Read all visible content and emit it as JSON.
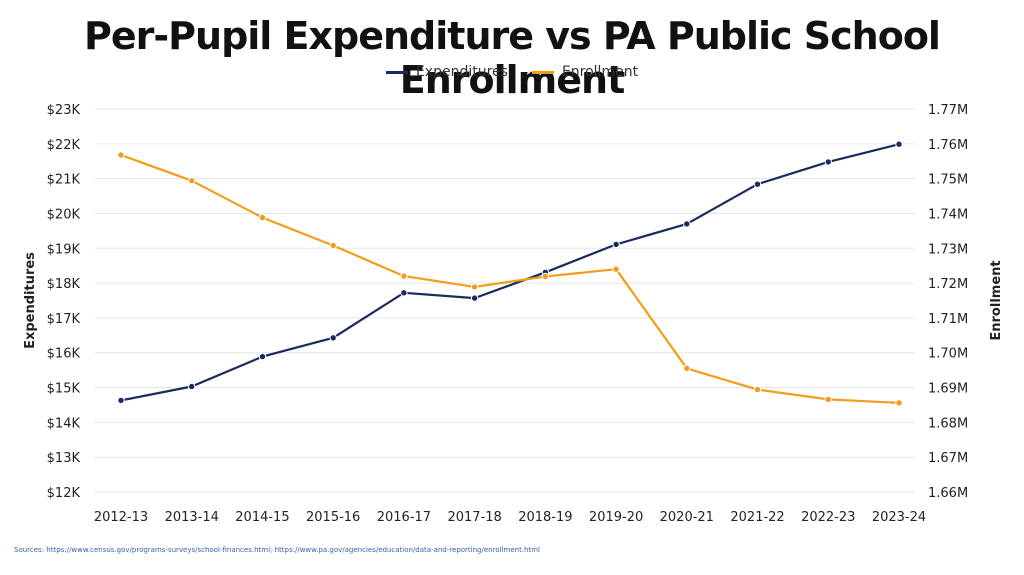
{
  "title": "Per-Pupil Expenditure vs PA Public School Enrollment",
  "legend": {
    "series_a": "Expenditures",
    "series_b": "Enrollment"
  },
  "colors": {
    "expenditures": "#1b2a5e",
    "enrollment": "#f39c1a",
    "grid": "#e6e6e6"
  },
  "source": "Sources: https://www.census.gov/programs-surveys/school-finances.html; https://www.pa.gov/agencies/education/data-and-reporting/enrollment.html",
  "chart_data": {
    "type": "line",
    "title": "Per-Pupil Expenditure vs PA Public School Enrollment",
    "x": [
      "2012-13",
      "2013-14",
      "2014-15",
      "2015-16",
      "2016-17",
      "2017-18",
      "2018-19",
      "2019-20",
      "2020-21",
      "2021-22",
      "2022-23",
      "2023-24"
    ],
    "ylabel": "Expenditures",
    "y2label": "Enrollment",
    "ylim": [
      12000,
      23000
    ],
    "y2lim": [
      1660000,
      1770000
    ],
    "yticks": [
      "$12K",
      "$13K",
      "$14K",
      "$15K",
      "$16K",
      "$17K",
      "$18K",
      "$19K",
      "$20K",
      "$21K",
      "$22K",
      "$23K"
    ],
    "y2ticks": [
      "1.66M",
      "1.67M",
      "1.68M",
      "1.69M",
      "1.70M",
      "1.71M",
      "1.72M",
      "1.73M",
      "1.74M",
      "1.75M",
      "1.76M",
      "1.77M"
    ],
    "grid": true,
    "legend_position": "top-center",
    "series": [
      {
        "name": "Expenditures",
        "axis": "left",
        "values": [
          14630,
          15030,
          15890,
          16430,
          17720,
          17570,
          18310,
          19110,
          19700,
          20840,
          21480,
          21990
        ]
      },
      {
        "name": "Enrollment",
        "axis": "right",
        "values": [
          1756800,
          1749400,
          1738800,
          1730800,
          1722000,
          1718900,
          1721900,
          1724000,
          1695500,
          1689400,
          1686600,
          1685600
        ]
      }
    ]
  }
}
